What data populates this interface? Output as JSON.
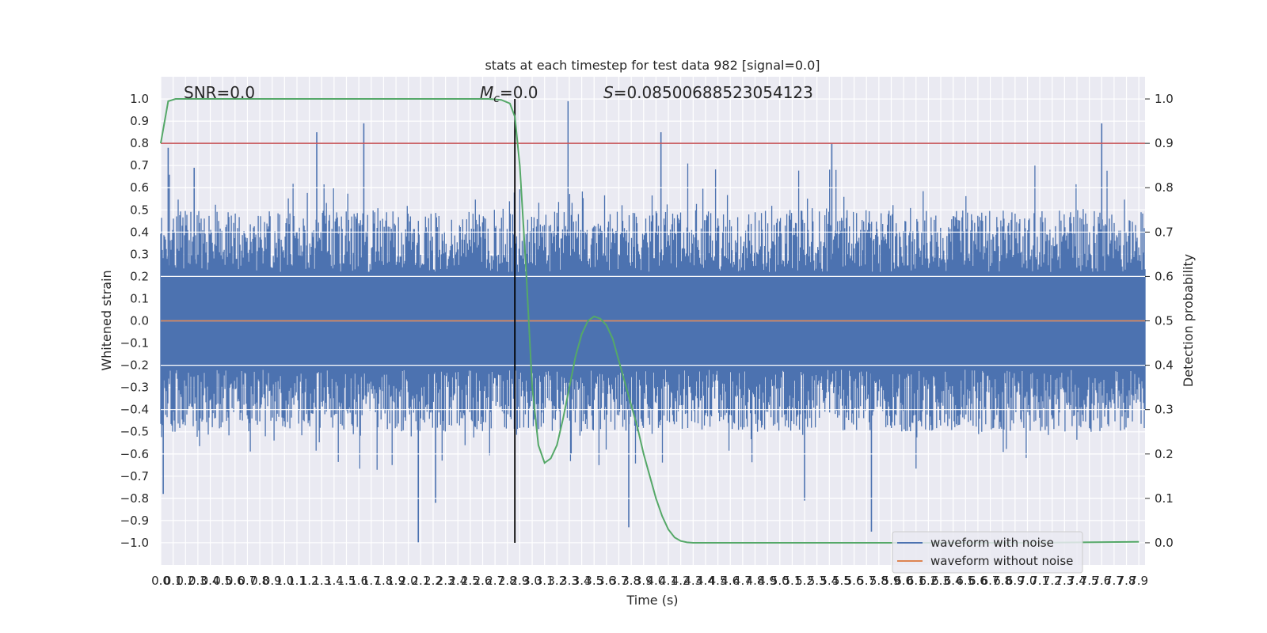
{
  "chart_data": {
    "type": "line",
    "title": "stats at each timestep for test data 982 [signal=0.0]",
    "xlabel": "Time (s)",
    "ylabel": "Whitened strain",
    "y2label": "Detection probability",
    "xlim": [
      0.0,
      7.95
    ],
    "ylim": [
      -1.1,
      1.1
    ],
    "y2lim": [
      -0.05,
      1.05
    ],
    "x_ticks": [
      0.0,
      0.1,
      0.2,
      0.3,
      0.4,
      0.5,
      0.6,
      0.7,
      0.8,
      0.9,
      1.0,
      1.1,
      1.2,
      1.3,
      1.4,
      1.5,
      1.6,
      1.7,
      1.8,
      1.9,
      2.0,
      2.1,
      2.2,
      2.3,
      2.4,
      2.5,
      2.6,
      2.7,
      2.8,
      2.9,
      3.0,
      3.1,
      3.2,
      3.3,
      3.4,
      3.5,
      3.6,
      3.7,
      3.8,
      3.9,
      4.0,
      4.1,
      4.2,
      4.3,
      4.4,
      4.5,
      4.6,
      4.7,
      4.8,
      4.9,
      5.0,
      5.1,
      5.2,
      5.3,
      5.4,
      5.5,
      5.6,
      5.7,
      5.8,
      5.9,
      6.0,
      6.1,
      6.2,
      6.3,
      6.4,
      6.5,
      6.6,
      6.7,
      6.8,
      6.9,
      7.0,
      7.1,
      7.2,
      7.3,
      7.4,
      7.5,
      7.6,
      7.7,
      7.8,
      7.9
    ],
    "y_ticks": [
      -1.0,
      -0.9,
      -0.8,
      -0.7,
      -0.6,
      -0.5,
      -0.4,
      -0.3,
      -0.2,
      -0.1,
      0.0,
      0.1,
      0.2,
      0.3,
      0.4,
      0.5,
      0.6,
      0.7,
      0.8,
      0.9,
      1.0
    ],
    "y2_ticks": [
      0.0,
      0.1,
      0.2,
      0.3,
      0.4,
      0.5,
      0.6,
      0.7,
      0.8,
      0.9,
      1.0
    ],
    "grid": true,
    "legend_position": "lower-right",
    "annotations": {
      "snr": "SNR=0.0",
      "mc_symbol": "M",
      "mc_sub": "c",
      "mc_value": "=0.0",
      "s_symbol": "S",
      "s_value": "=0.08500688523054123"
    },
    "threshold": {
      "y2": 0.9,
      "color": "#c44e52"
    },
    "marker_line": {
      "x": 2.86,
      "y_from": -1.0,
      "y_to": 1.0,
      "color": "#000000"
    },
    "series": [
      {
        "name": "waveform with noise",
        "color": "#4c72b0",
        "axis": "left",
        "style": "noise-band",
        "extent_x": [
          0.0,
          7.95
        ],
        "peaks": [
          {
            "x": 0.06,
            "y": 0.78
          },
          {
            "x": 0.27,
            "y": 0.69
          },
          {
            "x": 1.26,
            "y": 0.85
          },
          {
            "x": 1.64,
            "y": 0.89
          },
          {
            "x": 3.29,
            "y": 0.99
          },
          {
            "x": 4.04,
            "y": 0.85
          },
          {
            "x": 5.42,
            "y": 0.8
          },
          {
            "x": 7.6,
            "y": 0.89
          },
          {
            "x": 2.08,
            "y": -1.0
          },
          {
            "x": 0.02,
            "y": -0.78
          },
          {
            "x": 3.78,
            "y": -0.93
          },
          {
            "x": 5.74,
            "y": -0.95
          },
          {
            "x": 2.22,
            "y": -0.82
          },
          {
            "x": 5.2,
            "y": -0.81
          }
        ]
      },
      {
        "name": "waveform without noise",
        "color": "#dd8452",
        "axis": "left",
        "x": [
          0.0,
          7.95
        ],
        "y": [
          0.0,
          0.0
        ]
      },
      {
        "name": "detection probability",
        "color": "#55a868",
        "axis": "right",
        "x": [
          0.0,
          0.06,
          0.12,
          0.2,
          0.4,
          0.8,
          1.2,
          1.6,
          2.0,
          2.4,
          2.65,
          2.75,
          2.82,
          2.86,
          2.9,
          2.95,
          3.0,
          3.05,
          3.1,
          3.15,
          3.2,
          3.25,
          3.3,
          3.35,
          3.4,
          3.45,
          3.5,
          3.55,
          3.6,
          3.65,
          3.7,
          3.75,
          3.8,
          3.85,
          3.9,
          3.95,
          4.0,
          4.05,
          4.1,
          4.15,
          4.2,
          4.25,
          4.3,
          4.4,
          4.6,
          5.0,
          6.0,
          7.0,
          7.9
        ],
        "y": [
          0.9,
          0.995,
          1.0,
          1.0,
          1.0,
          1.0,
          1.0,
          1.0,
          1.0,
          1.0,
          1.0,
          0.998,
          0.99,
          0.96,
          0.85,
          0.62,
          0.35,
          0.22,
          0.18,
          0.19,
          0.22,
          0.28,
          0.35,
          0.42,
          0.47,
          0.5,
          0.51,
          0.505,
          0.49,
          0.46,
          0.41,
          0.36,
          0.31,
          0.26,
          0.2,
          0.15,
          0.1,
          0.06,
          0.03,
          0.012,
          0.004,
          0.001,
          0.0,
          0.0,
          0.0,
          0.0,
          0.0,
          0.0,
          0.002
        ]
      }
    ],
    "legend": [
      {
        "label": "waveform with noise",
        "color": "#4c72b0"
      },
      {
        "label": "waveform without noise",
        "color": "#dd8452"
      }
    ]
  }
}
